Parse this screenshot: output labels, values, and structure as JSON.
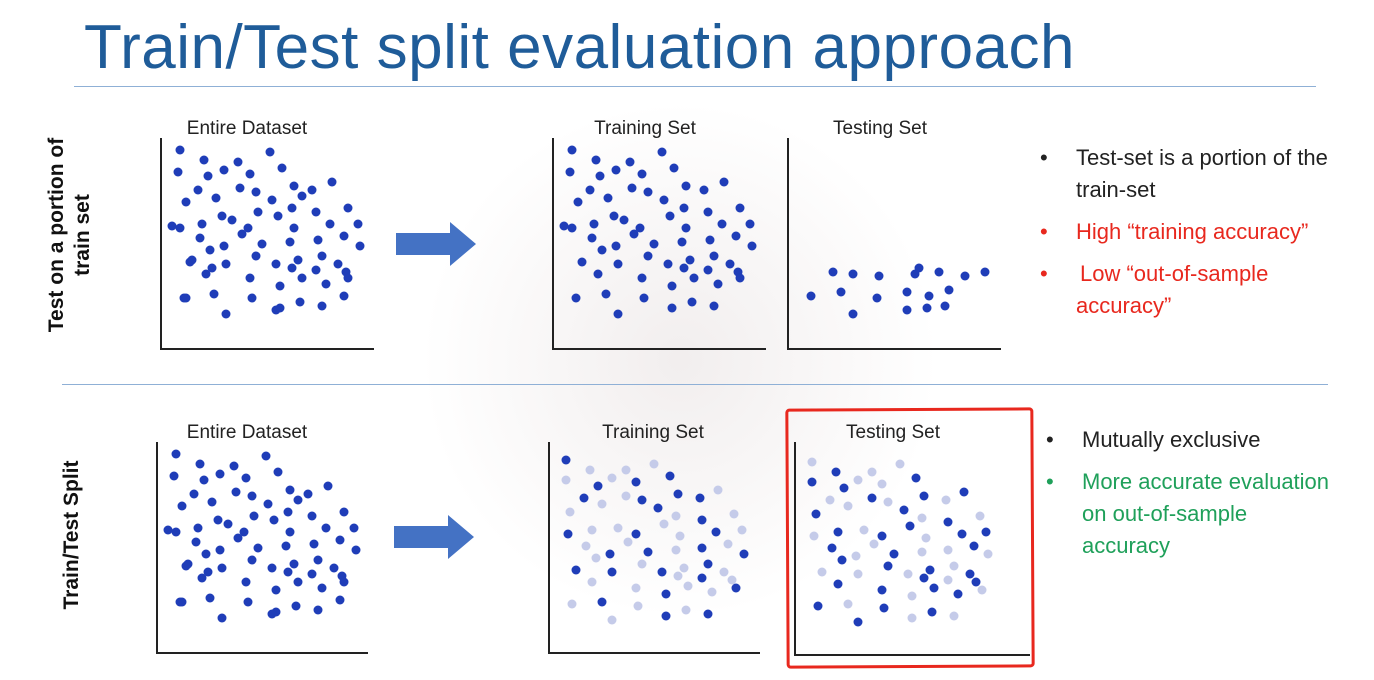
{
  "title": "Train/Test split evaluation approach",
  "colors": {
    "title": "#1f5c99",
    "dot": "#1f3db8",
    "dot_faded": "#c5cbe9",
    "arrow": "#4472c4",
    "red_text": "#e8281e",
    "green_text": "#1fa05a",
    "highlight_frame": "#e8281e"
  },
  "row1": {
    "label_line1": "Test on a portion of",
    "label_line2": "train set",
    "entire_title": "Entire Dataset",
    "training_title": "Training Set",
    "testing_title": "Testing Set",
    "bullets": [
      {
        "text": "Test-set is a portion of the train-set",
        "color": "black"
      },
      {
        "text": "High “training accuracy”",
        "color": "red"
      },
      {
        "text": "Low “out-of-sample accuracy”",
        "color": "red"
      }
    ]
  },
  "row2": {
    "label": "Train/Test Split",
    "entire_title": "Entire Dataset",
    "training_title": "Training Set",
    "testing_title": "Testing Set",
    "bullets": [
      {
        "text": "Mutually exclusive",
        "color": "black"
      },
      {
        "text": "More accurate evaluation on out-of-sample accuracy",
        "color": "green"
      }
    ]
  },
  "icons": {
    "arrow": "right-arrow-icon",
    "bullet": "bullet-dot-icon",
    "highlight": "red-highlight-frame"
  }
}
